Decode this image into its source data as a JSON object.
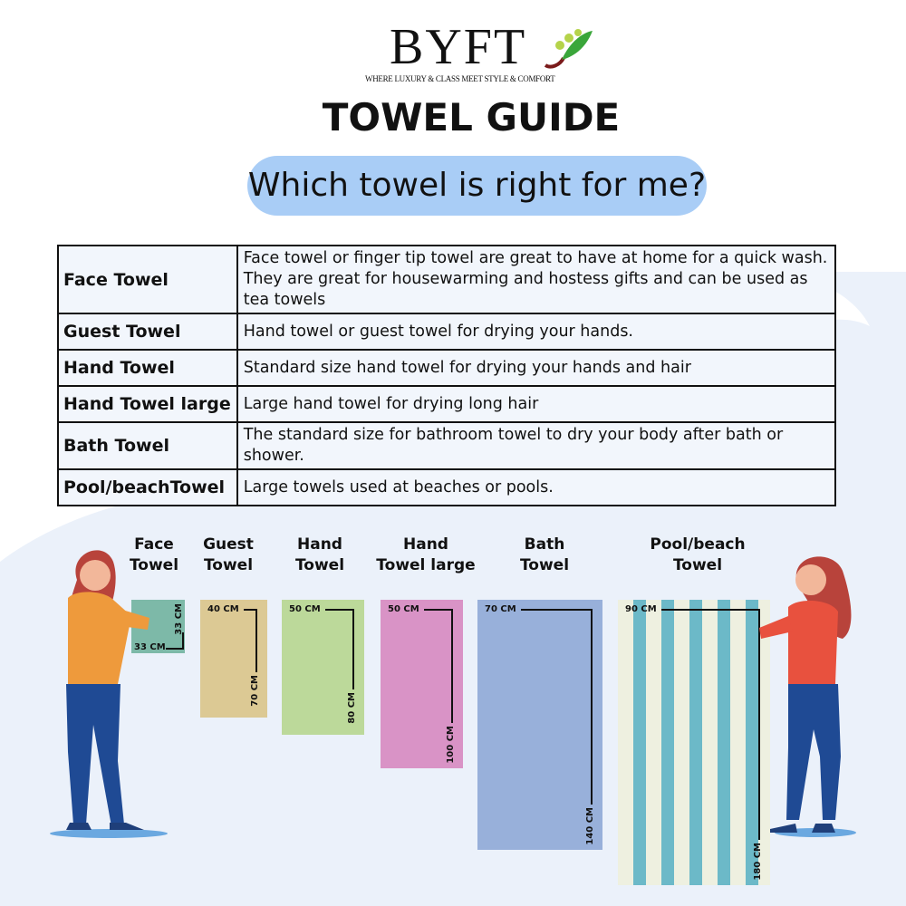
{
  "brand": {
    "name": "BYFT",
    "tagline": "WHERE LUXURY & CLASS MEET STYLE & COMFORT"
  },
  "title": "TOWEL GUIDE",
  "subtitle": "Which towel is right for me?",
  "table": [
    {
      "name": "Face Towel",
      "desc": "Face towel or finger tip towel are great to have at home for a quick wash.",
      "desc2": "They are great for housewarming and hostess gifts and can be used as tea towels"
    },
    {
      "name": "Guest Towel",
      "desc": "Hand towel or guest towel for drying your hands."
    },
    {
      "name": "Hand Towel",
      "desc": "Standard size hand towel for drying your hands and hair"
    },
    {
      "name": "Hand Towel large",
      "desc": "Large hand towel for drying long hair"
    },
    {
      "name": "Bath Towel",
      "desc": "The standard size for bathroom towel to dry your body after bath or shower."
    },
    {
      "name": "Pool/beachTowel",
      "desc": "Large towels used at beaches or pools."
    }
  ],
  "towels": [
    {
      "l1": "Face",
      "l2": "Towel",
      "w": "33 CM",
      "h": "33 CM",
      "color": "#7db9a8"
    },
    {
      "l1": "Guest",
      "l2": "Towel",
      "w": "40 CM",
      "h": "70 CM",
      "color": "#dcc994"
    },
    {
      "l1": "Hand",
      "l2": "Towel",
      "w": "50 CM",
      "h": "80 CM",
      "color": "#bcd99a"
    },
    {
      "l1": "Hand",
      "l2": "Towel large",
      "w": "50 CM",
      "h": "100 CM",
      "color": "#d993c6"
    },
    {
      "l1": "Bath",
      "l2": "Towel",
      "w": "70 CM",
      "h": "140 CM",
      "color": "#98b0da"
    },
    {
      "l1": "Pool/beach",
      "l2": "Towel",
      "w": "90 CM",
      "h": "180 CM",
      "color": "#6cb9c8"
    }
  ],
  "colors": {
    "pill": "#a9cdf6",
    "background_shape": "#ebf1fa"
  }
}
